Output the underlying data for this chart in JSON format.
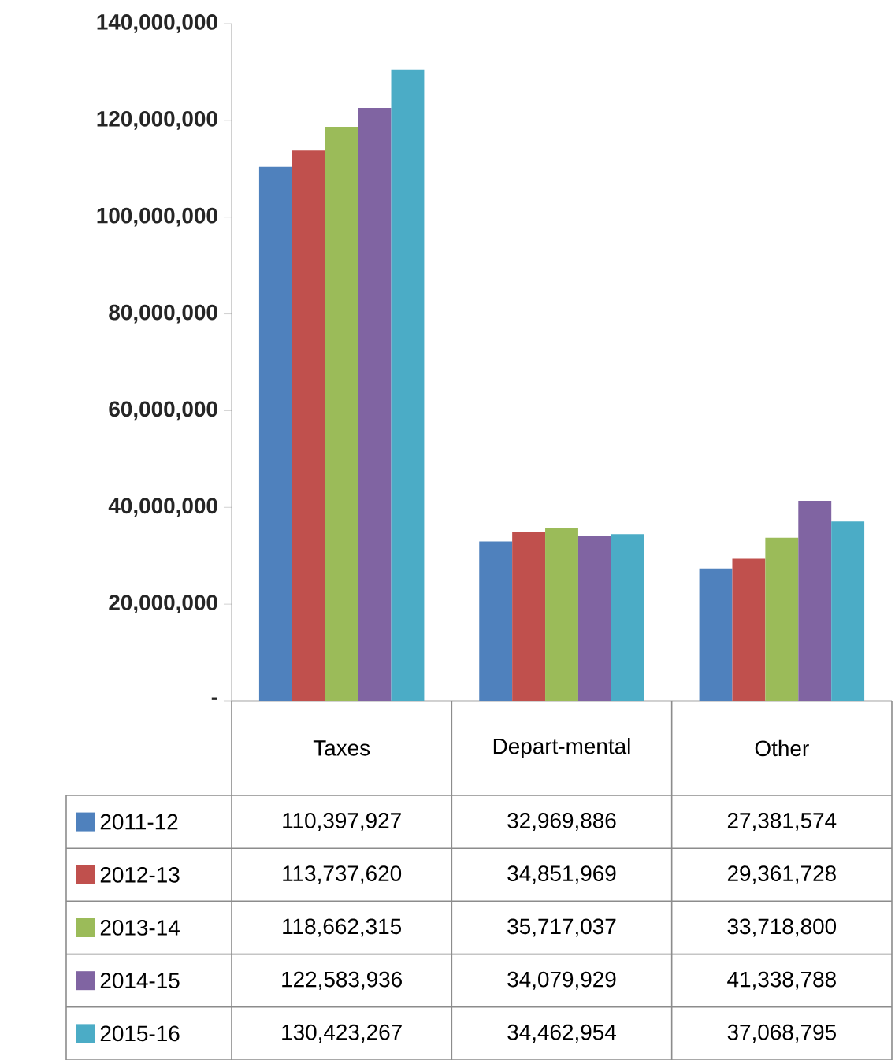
{
  "chart_data": {
    "type": "bar",
    "categories": [
      "Taxes",
      "Depart-mental",
      "Other"
    ],
    "series": [
      {
        "name": "2011-12",
        "color": "#4f81bd",
        "values": [
          110397927,
          32969886,
          27381574
        ],
        "value_labels": [
          "110,397,927",
          "32,969,886",
          "27,381,574"
        ]
      },
      {
        "name": "2012-13",
        "color": "#c0504d",
        "values": [
          113737620,
          34851969,
          29361728
        ],
        "value_labels": [
          "113,737,620",
          "34,851,969",
          "29,361,728"
        ]
      },
      {
        "name": "2013-14",
        "color": "#9bbb59",
        "values": [
          118662315,
          35717037,
          33718800
        ],
        "value_labels": [
          "118,662,315",
          "35,717,037",
          "33,718,800"
        ]
      },
      {
        "name": "2014-15",
        "color": "#8064a2",
        "values": [
          122583936,
          34079929,
          41338788
        ],
        "value_labels": [
          "122,583,936",
          "34,079,929",
          "41,338,788"
        ]
      },
      {
        "name": "2015-16",
        "color": "#4bacc6",
        "values": [
          130423267,
          34462954,
          37068795
        ],
        "value_labels": [
          "130,423,267",
          "34,462,954",
          "37,068,795"
        ]
      }
    ],
    "ylim": [
      0,
      140000000
    ],
    "yticks": [
      {
        "value": 0,
        "label": "-"
      },
      {
        "value": 20000000,
        "label": "20,000,000"
      },
      {
        "value": 40000000,
        "label": "40,000,000"
      },
      {
        "value": 60000000,
        "label": "60,000,000"
      },
      {
        "value": 80000000,
        "label": "80,000,000"
      },
      {
        "value": 100000000,
        "label": "100,000,000"
      },
      {
        "value": 120000000,
        "label": "120,000,000"
      },
      {
        "value": 140000000,
        "label": "140,000,000"
      }
    ],
    "legend": "bottom"
  }
}
